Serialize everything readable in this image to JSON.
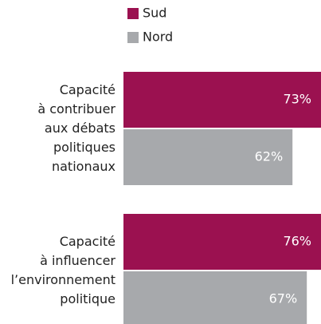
{
  "chart_data": {
    "type": "bar",
    "orientation": "horizontal",
    "categories": [
      "Capacité\nà contribuer\naux débats\npolitiques\nnationaux",
      "Capacité\nà influencer\nl’environnement\npolitique"
    ],
    "series": [
      {
        "name": "Sud",
        "color": "#9b1150",
        "values": [
          73,
          76
        ],
        "value_labels": [
          "73%",
          "76%"
        ]
      },
      {
        "name": "Nord",
        "color": "#a7a9ac",
        "values": [
          62,
          67
        ],
        "value_labels": [
          "62%",
          "67%"
        ]
      }
    ],
    "legend": "top"
  }
}
